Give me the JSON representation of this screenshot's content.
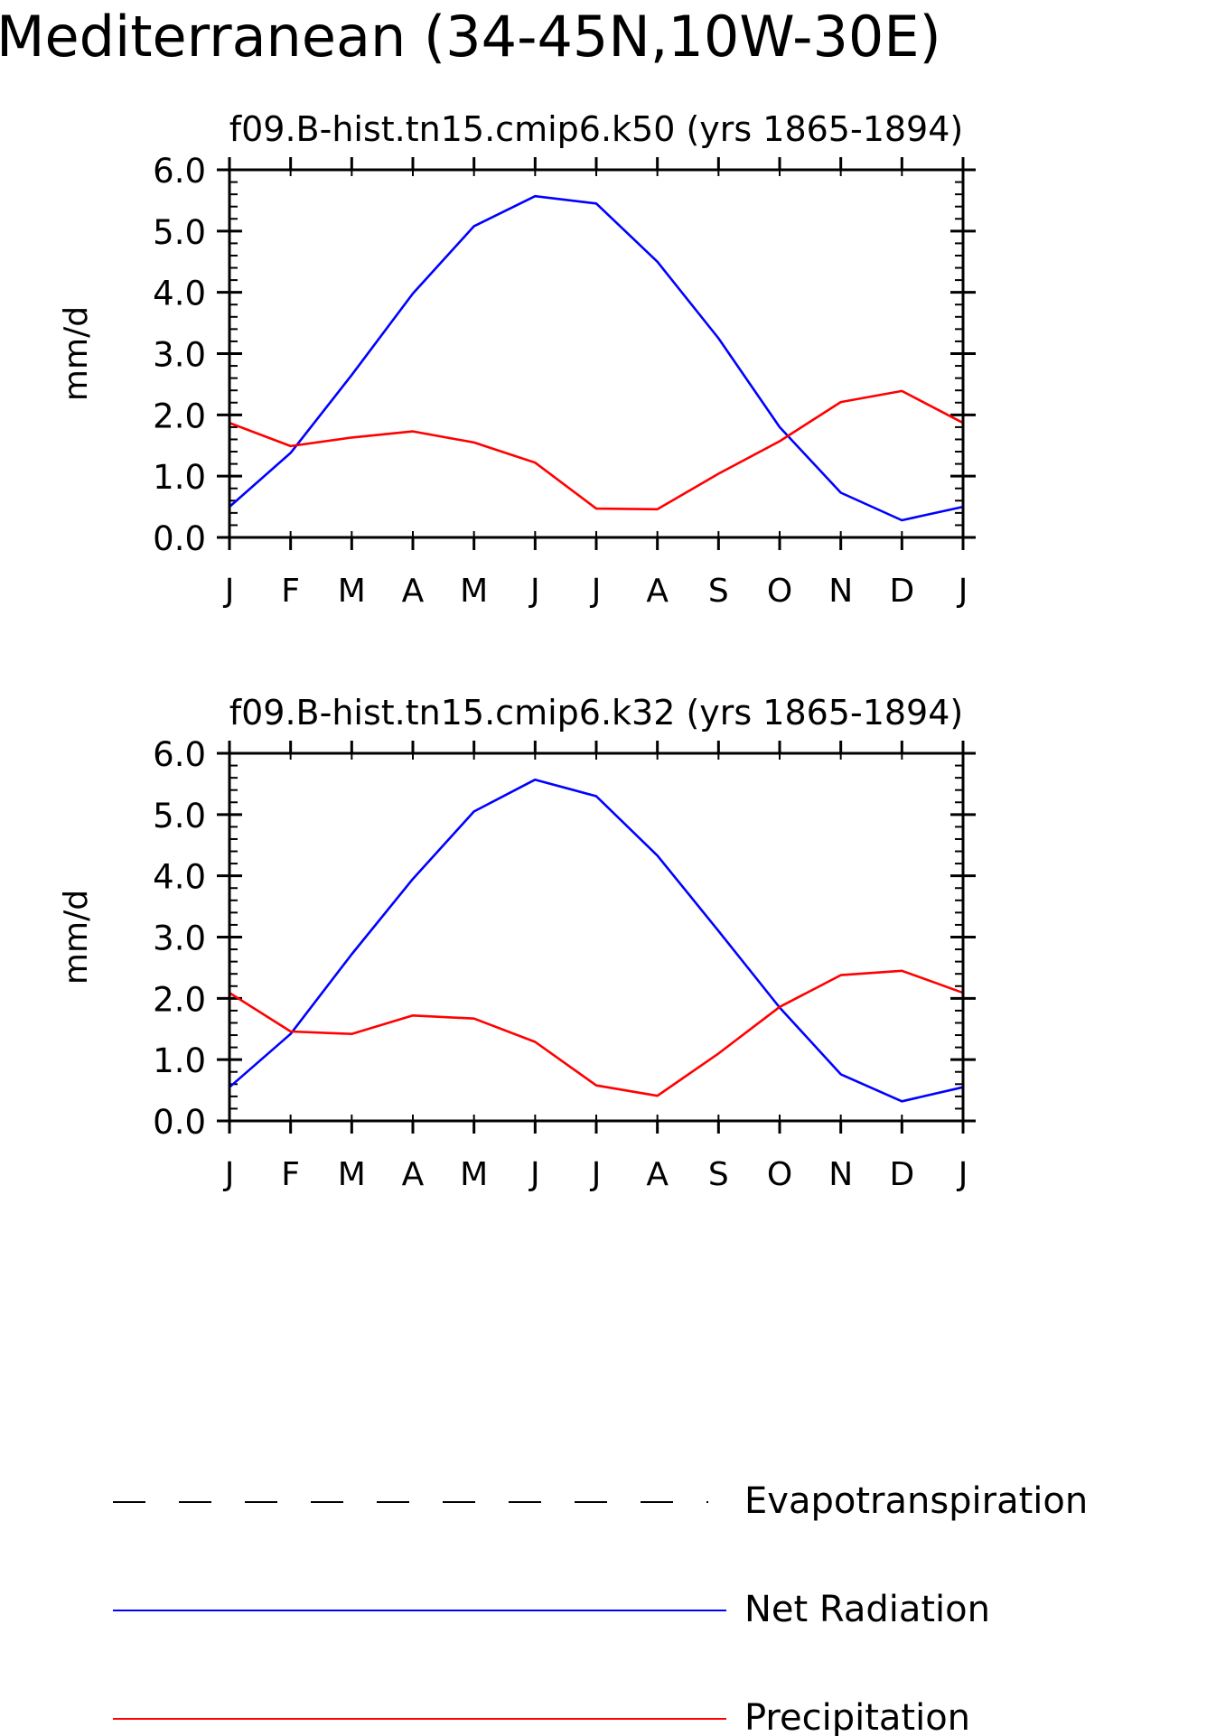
{
  "page_title": "Mediterranean (34-45N,10W-30E)",
  "colors": {
    "net_radiation": "#0000ff",
    "precipitation": "#ff0000",
    "evapotranspiration": "#000000",
    "axes": "#000000"
  },
  "chart_data": [
    {
      "type": "line",
      "title": "f09.B-hist.tn15.cmip6.k50 (yrs 1865-1894)",
      "ylabel": "mm/d",
      "xlabel": "",
      "categories": [
        "J",
        "F",
        "M",
        "A",
        "M",
        "J",
        "J",
        "A",
        "S",
        "O",
        "N",
        "D",
        "J"
      ],
      "ylim": [
        0,
        6
      ],
      "yticks": [
        "0.0",
        "1.0",
        "2.0",
        "3.0",
        "4.0",
        "5.0",
        "6.0"
      ],
      "grid": false,
      "series": [
        {
          "name": "Net Radiation",
          "color": "#0000ff",
          "values": [
            0.5,
            1.38,
            2.65,
            3.98,
            5.08,
            5.57,
            5.45,
            4.5,
            3.25,
            1.8,
            0.73,
            0.28,
            0.5
          ]
        },
        {
          "name": "Precipitation",
          "color": "#ff0000",
          "values": [
            1.87,
            1.49,
            1.63,
            1.73,
            1.55,
            1.22,
            0.47,
            0.46,
            1.04,
            1.57,
            2.21,
            2.39,
            1.87
          ]
        }
      ]
    },
    {
      "type": "line",
      "title": "f09.B-hist.tn15.cmip6.k32 (yrs 1865-1894)",
      "ylabel": "mm/d",
      "xlabel": "",
      "categories": [
        "J",
        "F",
        "M",
        "A",
        "M",
        "J",
        "J",
        "A",
        "S",
        "O",
        "N",
        "D",
        "J"
      ],
      "ylim": [
        0,
        6
      ],
      "yticks": [
        "0.0",
        "1.0",
        "2.0",
        "3.0",
        "4.0",
        "5.0",
        "6.0"
      ],
      "grid": false,
      "series": [
        {
          "name": "Net Radiation",
          "color": "#0000ff",
          "values": [
            0.55,
            1.42,
            2.72,
            3.95,
            5.05,
            5.57,
            5.3,
            4.33,
            3.1,
            1.85,
            0.76,
            0.32,
            0.55
          ]
        },
        {
          "name": "Precipitation",
          "color": "#ff0000",
          "values": [
            2.09,
            1.46,
            1.42,
            1.72,
            1.67,
            1.29,
            0.58,
            0.41,
            1.1,
            1.86,
            2.38,
            2.45,
            2.09
          ]
        }
      ]
    }
  ],
  "legend": {
    "placement": "bottom",
    "items": [
      {
        "label": "Evapotranspiration",
        "color": "#000000",
        "style": "dashed"
      },
      {
        "label": "Net Radiation",
        "color": "#0000ff",
        "style": "solid"
      },
      {
        "label": "Precipitation",
        "color": "#ff0000",
        "style": "solid"
      }
    ]
  }
}
